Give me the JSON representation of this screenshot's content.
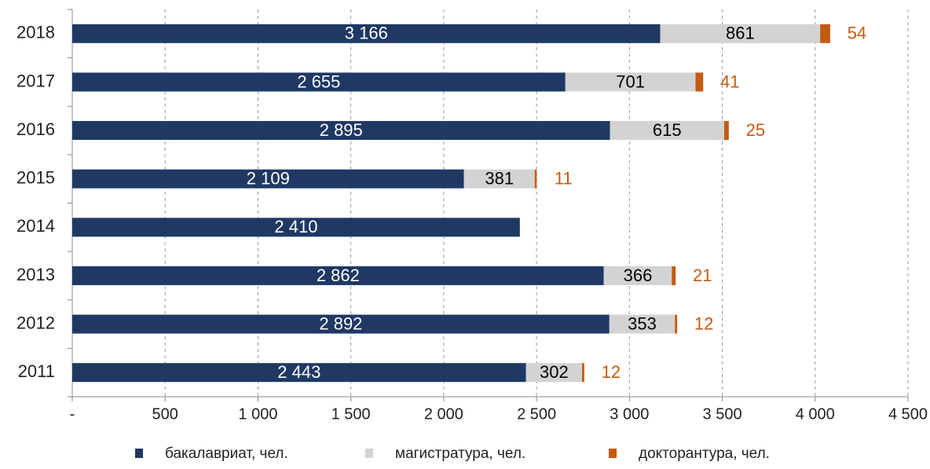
{
  "chart_data": {
    "type": "bar",
    "orientation": "horizontal",
    "stacked": true,
    "categories": [
      "2018",
      "2017",
      "2016",
      "2015",
      "2014",
      "2013",
      "2012",
      "2011"
    ],
    "series": [
      {
        "name": "бакалавриат, чел.",
        "color": "#1f3864",
        "label_color": "#ffffff",
        "values": [
          3166,
          2655,
          2895,
          2109,
          2410,
          2862,
          2892,
          2443
        ],
        "value_labels": [
          "3 166",
          "2 655",
          "2 895",
          "2 109",
          "2 410",
          "2 862",
          "2 892",
          "2 443"
        ]
      },
      {
        "name": "магистратура, чел.",
        "color": "#d3d3d3",
        "label_color": "#000000",
        "values": [
          861,
          701,
          615,
          381,
          null,
          366,
          353,
          302
        ]
      },
      {
        "name": "докторантура, чел.",
        "color": "#c55a11",
        "label_color": "#c55a11",
        "values": [
          54,
          41,
          25,
          11,
          null,
          21,
          12,
          12
        ]
      }
    ],
    "xlim": [
      0,
      4500
    ],
    "xticks": [
      {
        "value": 0,
        "label": "-"
      },
      500,
      {
        "value": 1000,
        "label": "1 000"
      },
      {
        "value": 1500,
        "label": "1 500"
      },
      {
        "value": 2000,
        "label": "2 000"
      },
      {
        "value": 2500,
        "label": "2 500"
      },
      {
        "value": 3000,
        "label": "3 000"
      },
      {
        "value": 3500,
        "label": "3 500"
      },
      {
        "value": 4000,
        "label": "4 000"
      },
      {
        "value": 4500,
        "label": "4 500"
      }
    ],
    "grid": true,
    "legend": "bottom"
  }
}
